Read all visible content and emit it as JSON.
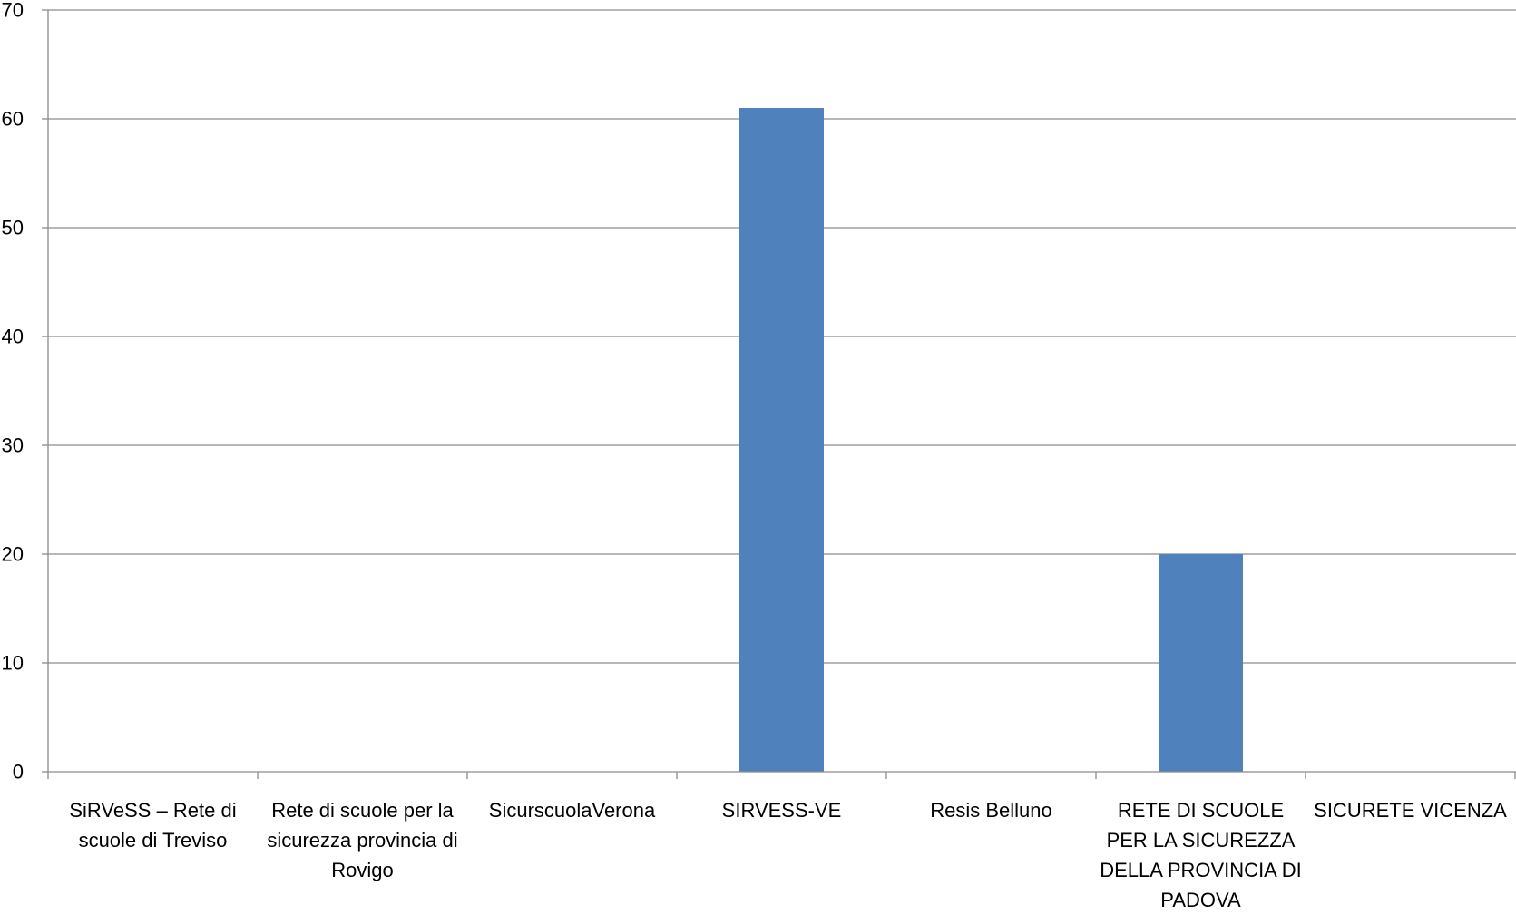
{
  "chart_data": {
    "type": "bar",
    "title": "",
    "xlabel": "",
    "ylabel": "",
    "categories": [
      "SiRVeSS – Rete di scuole di Treviso",
      "Rete di scuole per la sicurezza provincia di Rovigo",
      "SicurscuolaVerona",
      "SIRVESS-VE",
      "Resis Belluno",
      "RETE DI SCUOLE PER LA SICUREZZA DELLA PROVINCIA DI PADOVA",
      "SICURETE VICENZA"
    ],
    "values": [
      0,
      0,
      0,
      61,
      0,
      20,
      0
    ],
    "ylim": [
      0,
      70
    ],
    "yticks": [
      0,
      10,
      20,
      30,
      40,
      50,
      60,
      70
    ],
    "grid": true,
    "legend": "none",
    "bar_color": "#4f81bd"
  }
}
